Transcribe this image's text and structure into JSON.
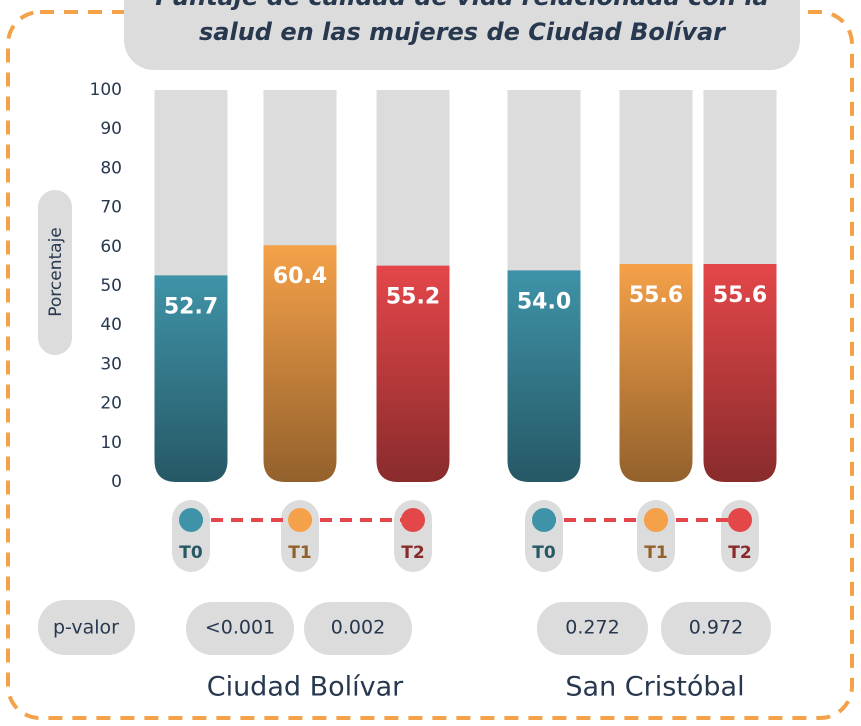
{
  "chart_data": {
    "type": "bar",
    "title_lines": [
      "Puntaje de calidad de vida relacionada con la",
      "salud en las mujeres de Ciudad Bolívar"
    ],
    "ylabel": "Porcentaje",
    "ylim": [
      0,
      100
    ],
    "yticks": [
      0,
      10,
      20,
      30,
      40,
      50,
      60,
      70,
      80,
      90,
      100
    ],
    "categories": [
      "T0",
      "T1",
      "T2"
    ],
    "colors": [
      "#3f93a8",
      "#f5a149",
      "#e4474a"
    ],
    "p_label": "p-valor",
    "groups": [
      {
        "name": "Ciudad Bolívar",
        "values": [
          52.7,
          60.4,
          55.2
        ],
        "value_labels": [
          "52.7",
          "60.4",
          "55.2"
        ],
        "p_values": [
          "<0.001",
          "0.002"
        ]
      },
      {
        "name": "San Cristóbal",
        "values": [
          54.0,
          55.6,
          55.6
        ],
        "value_labels": [
          "54.0",
          "55.6",
          "55.6"
        ],
        "p_values": [
          "0.272",
          "0.972"
        ]
      }
    ]
  }
}
